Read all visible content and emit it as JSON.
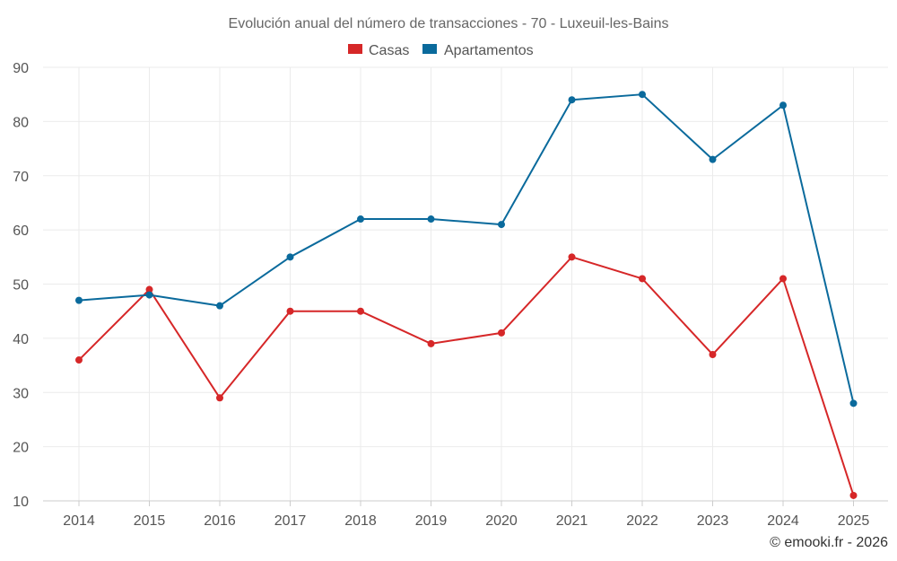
{
  "chart_data": {
    "type": "line",
    "title": "Evolución anual del número de transacciones - 70 - Luxeuil-les-Bains",
    "categories": [
      "2014",
      "2015",
      "2016",
      "2017",
      "2018",
      "2019",
      "2020",
      "2021",
      "2022",
      "2023",
      "2024",
      "2025"
    ],
    "series": [
      {
        "name": "Casas",
        "color": "#d62728",
        "values": [
          36,
          49,
          29,
          45,
          45,
          39,
          41,
          55,
          51,
          37,
          51,
          11
        ]
      },
      {
        "name": "Apartamentos",
        "color": "#0a6a9c",
        "values": [
          47,
          48,
          46,
          55,
          62,
          62,
          61,
          84,
          85,
          73,
          83,
          28
        ]
      }
    ],
    "ylim": [
      10,
      90
    ],
    "yticks": [
      10,
      20,
      30,
      40,
      50,
      60,
      70,
      80,
      90
    ],
    "legend": "top-center",
    "grid": true,
    "xlabel": "",
    "ylabel": ""
  },
  "credit": "© emooki.fr - 2026"
}
